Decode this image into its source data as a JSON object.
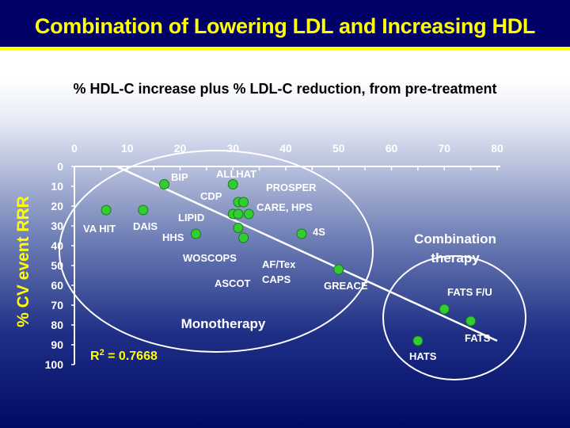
{
  "header": {
    "title": "Combination of Lowering LDL and Increasing HDL"
  },
  "colors": {
    "title_bar": "#000066",
    "title_text": "#ffff00",
    "point_fill": "#33cc33",
    "label_text": "#ffffff",
    "ylabel_text": "#ffff00"
  },
  "chart_data": {
    "type": "scatter",
    "title": "% HDL-C increase plus % LDL-C reduction, from pre-treatment",
    "xlabel": "% HDL-C increase plus % LDL-C reduction, from pre-treatment",
    "ylabel": "% CV event RRR",
    "xlim": [
      0,
      80
    ],
    "ylim": [
      0,
      100
    ],
    "x_ticks": [
      "0",
      "10",
      "20",
      "30",
      "40",
      "50",
      "60",
      "70",
      "80"
    ],
    "y_ticks": [
      "0",
      "10",
      "20",
      "30",
      "40",
      "50",
      "60",
      "70",
      "80",
      "90",
      "100"
    ],
    "y_inverted": true,
    "grid": false,
    "points": [
      {
        "label": "VA HIT",
        "x": 6,
        "y": 22
      },
      {
        "label": "DAIS",
        "x": 13,
        "y": 22
      },
      {
        "label": "BIP",
        "x": 17,
        "y": 9
      },
      {
        "label": "ALLHAT",
        "x": 30,
        "y": 9
      },
      {
        "label": "HHS",
        "x": 23,
        "y": 34
      },
      {
        "label": "CDP",
        "x": 31,
        "y": 18
      },
      {
        "label": "PROSPER",
        "x": 32,
        "y": 18
      },
      {
        "label": "LIPID",
        "x": 30,
        "y": 24
      },
      {
        "label": "",
        "x": 31,
        "y": 24
      },
      {
        "label": "CARE, HPS",
        "x": 33,
        "y": 24
      },
      {
        "label": "WOSCOPS",
        "x": 31,
        "y": 31
      },
      {
        "label": "ASCOT",
        "x": 32,
        "y": 36
      },
      {
        "label": "4S",
        "x": 43,
        "y": 34
      },
      {
        "label": "GREACE",
        "x": 50,
        "y": 52
      },
      {
        "label": "FATS F/U",
        "x": 70,
        "y": 72
      },
      {
        "label": "FATS",
        "x": 75,
        "y": 78
      },
      {
        "label": "HATS",
        "x": 65,
        "y": 88
      }
    ],
    "extra_labels": [
      "AF/Tex",
      "CAPS"
    ],
    "trendline": {
      "x1": 8,
      "y1": 0,
      "x2": 80,
      "y2": 88
    },
    "r_squared_label": "R",
    "r_squared_sup": "2",
    "r_squared_value": " = 0.7668",
    "groups": [
      {
        "name": "Monotherapy"
      },
      {
        "name": "Combination",
        "name_line2": "therapy"
      }
    ]
  }
}
